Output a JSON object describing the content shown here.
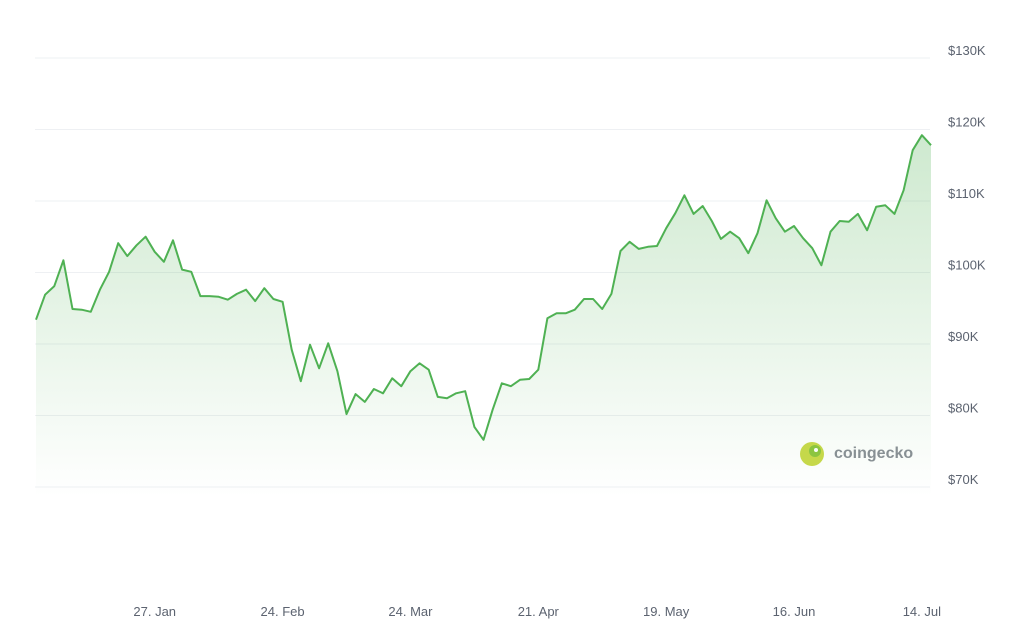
{
  "chart_data": {
    "type": "line",
    "color": "#4fb153",
    "grid": true,
    "watermark": "coingecko",
    "x": [
      "1. Jan",
      "3. Jan",
      "5. Jan",
      "7. Jan",
      "9. Jan",
      "11. Jan",
      "13. Jan",
      "15. Jan",
      "17. Jan",
      "19. Jan",
      "21. Jan",
      "23. Jan",
      "25. Jan",
      "27. Jan",
      "29. Jan",
      "31. Jan",
      "2. Feb",
      "4. Feb",
      "6. Feb",
      "8. Feb",
      "10. Feb",
      "12. Feb",
      "14. Feb",
      "16. Feb",
      "18. Feb",
      "20. Feb",
      "22. Feb",
      "24. Feb",
      "26. Feb",
      "28. Feb",
      "2. Mar",
      "4. Mar",
      "6. Mar",
      "8. Mar",
      "10. Mar",
      "12. Mar",
      "14. Mar",
      "16. Mar",
      "18. Mar",
      "20. Mar",
      "22. Mar",
      "24. Mar",
      "26. Mar",
      "28. Mar",
      "30. Mar",
      "1. Apr",
      "3. Apr",
      "5. Apr",
      "7. Apr",
      "9. Apr",
      "11. Apr",
      "13. Apr",
      "15. Apr",
      "17. Apr",
      "19. Apr",
      "21. Apr",
      "23. Apr",
      "25. Apr",
      "27. Apr",
      "29. Apr",
      "1. May",
      "3. May",
      "5. May",
      "7. May",
      "9. May",
      "11. May",
      "13. May",
      "15. May",
      "17. May",
      "19. May",
      "21. May",
      "23. May",
      "25. May",
      "27. May",
      "29. May",
      "31. May",
      "2. Jun",
      "4. Jun",
      "6. Jun",
      "8. Jun",
      "10. Jun",
      "12. Jun",
      "14. Jun",
      "16. Jun",
      "18. Jun",
      "20. Jun",
      "22. Jun",
      "24. Jun",
      "26. Jun",
      "28. Jun",
      "30. Jun",
      "2. Jul",
      "4. Jul",
      "6. Jul",
      "8. Jul",
      "10. Jul",
      "12. Jul",
      "14. Jul",
      "16. Jul"
    ],
    "values": [
      93400,
      96900,
      98100,
      101700,
      94900,
      94800,
      94500,
      97600,
      100100,
      104100,
      102300,
      103800,
      105000,
      102900,
      101500,
      104500,
      100400,
      100100,
      96700,
      96700,
      96600,
      96200,
      97000,
      97600,
      96000,
      97800,
      96300,
      95900,
      89200,
      84800,
      89900,
      86600,
      90100,
      86200,
      80200,
      83000,
      81900,
      83700,
      83100,
      85200,
      84100,
      86200,
      87300,
      86400,
      82600,
      82400,
      83100,
      83400,
      78400,
      76600,
      80800,
      84500,
      84100,
      85000,
      85100,
      86400,
      93600,
      94300,
      94300,
      94800,
      96300,
      96300,
      94900,
      97000,
      103000,
      104300,
      103300,
      103600,
      103700,
      106200,
      108300,
      110800,
      108200,
      109300,
      107200,
      104700,
      105700,
      104800,
      102700,
      105500,
      110100,
      107600,
      105700,
      106500,
      104800,
      103400,
      101000,
      105700,
      107200,
      107100,
      108200,
      105900,
      109200,
      109400,
      108200,
      111500,
      117100,
      119200,
      117800
    ],
    "xticks": [
      "27. Jan",
      "24. Feb",
      "24. Mar",
      "21. Apr",
      "19. May",
      "16. Jun",
      "14. Jul"
    ],
    "ylim": [
      70000,
      130000
    ],
    "yticks": [
      {
        "value": 70000,
        "label": "$70K"
      },
      {
        "value": 80000,
        "label": "$80K"
      },
      {
        "value": 90000,
        "label": "$90K"
      },
      {
        "value": 100000,
        "label": "$100K"
      },
      {
        "value": 110000,
        "label": "$110K"
      },
      {
        "value": 120000,
        "label": "$120K"
      },
      {
        "value": 130000,
        "label": "$130K"
      }
    ]
  }
}
